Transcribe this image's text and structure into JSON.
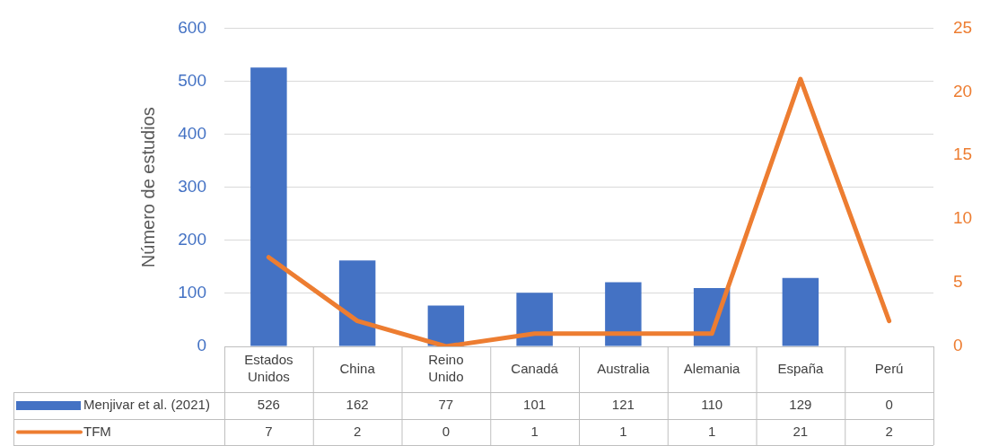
{
  "chart_data": {
    "type": "bar",
    "ylabel": "Número de estudios",
    "categories": [
      "Estados Unidos",
      "China",
      "Reino Unido",
      "Canadá",
      "Australia",
      "Alemania",
      "España",
      "Perú"
    ],
    "series": [
      {
        "name": "Menjivar et al. (2021)",
        "color": "#4472c4",
        "values": [
          526,
          162,
          77,
          101,
          121,
          110,
          129,
          0
        ]
      },
      {
        "name": "TFM",
        "type": "line",
        "axis": "y2",
        "color": "#ed7d31",
        "values": [
          7,
          2,
          0,
          1,
          1,
          1,
          21,
          2
        ]
      }
    ],
    "ylim": [
      0,
      600
    ],
    "yticks": [
      0,
      100,
      200,
      300,
      400,
      500,
      600
    ],
    "y2lim": [
      0,
      25
    ],
    "y2ticks": [
      0,
      5,
      10,
      15,
      20,
      25
    ],
    "grid": "y",
    "legend": "bottom",
    "data_labels": true
  }
}
